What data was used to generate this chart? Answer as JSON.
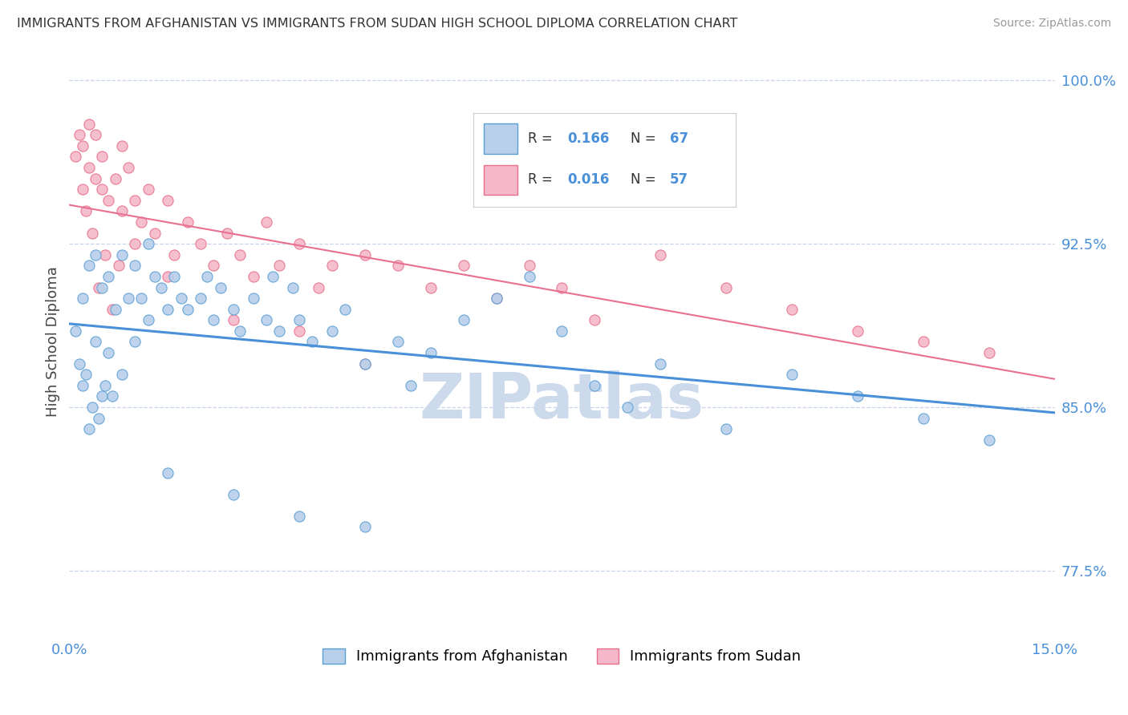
{
  "title": "IMMIGRANTS FROM AFGHANISTAN VS IMMIGRANTS FROM SUDAN HIGH SCHOOL DIPLOMA CORRELATION CHART",
  "source": "Source: ZipAtlas.com",
  "ylabel": "High School Diploma",
  "xlim": [
    0.0,
    15.0
  ],
  "ylim": [
    74.5,
    101.5
  ],
  "yticks": [
    77.5,
    85.0,
    92.5,
    100.0
  ],
  "xticks": [
    0.0,
    15.0
  ],
  "xtick_labels": [
    "0.0%",
    "15.0%"
  ],
  "ytick_labels": [
    "77.5%",
    "85.0%",
    "92.5%",
    "100.0%"
  ],
  "afghanistan_color": "#b8d0ea",
  "sudan_color": "#f5b8cb",
  "afghanistan_edge_color": "#5a9fd4",
  "sudan_edge_color": "#e8708a",
  "afghanistan_line_color": "#4a90d9",
  "sudan_line_color": "#e87090",
  "R_afghanistan": 0.166,
  "N_afghanistan": 67,
  "R_sudan": 0.016,
  "N_sudan": 57,
  "watermark": "ZIPatlas",
  "watermark_color": "#ccdaec",
  "legend_label_afghanistan": "Immigrants from Afghanistan",
  "legend_label_sudan": "Immigrants from Sudan",
  "background_color": "#ffffff",
  "grid_color": "#c8d4e8",
  "afg_x": [
    0.1,
    0.2,
    0.2,
    0.3,
    0.3,
    0.4,
    0.4,
    0.5,
    0.5,
    0.6,
    0.6,
    0.7,
    0.8,
    0.8,
    0.9,
    1.0,
    1.0,
    1.1,
    1.2,
    1.2,
    1.3,
    1.4,
    1.5,
    1.6,
    1.7,
    1.8,
    2.0,
    2.1,
    2.2,
    2.3,
    2.5,
    2.6,
    2.8,
    3.0,
    3.1,
    3.2,
    3.4,
    3.5,
    3.7,
    4.0,
    4.2,
    4.5,
    5.0,
    5.2,
    5.5,
    6.0,
    6.5,
    7.0,
    7.5,
    8.0,
    8.5,
    9.0,
    10.0,
    11.0,
    12.0,
    13.0,
    14.0,
    0.15,
    0.25,
    0.35,
    0.45,
    0.55,
    0.65,
    1.5,
    2.5,
    3.5,
    4.5
  ],
  "afg_y": [
    88.5,
    90.0,
    86.0,
    91.5,
    84.0,
    92.0,
    88.0,
    90.5,
    85.5,
    91.0,
    87.5,
    89.5,
    92.0,
    86.5,
    90.0,
    91.5,
    88.0,
    90.0,
    92.5,
    89.0,
    91.0,
    90.5,
    89.5,
    91.0,
    90.0,
    89.5,
    90.0,
    91.0,
    89.0,
    90.5,
    89.5,
    88.5,
    90.0,
    89.0,
    91.0,
    88.5,
    90.5,
    89.0,
    88.0,
    88.5,
    89.5,
    87.0,
    88.0,
    86.0,
    87.5,
    89.0,
    90.0,
    91.0,
    88.5,
    86.0,
    85.0,
    87.0,
    84.0,
    86.5,
    85.5,
    84.5,
    83.5,
    87.0,
    86.5,
    85.0,
    84.5,
    86.0,
    85.5,
    82.0,
    81.0,
    80.0,
    79.5
  ],
  "sud_x": [
    0.1,
    0.15,
    0.2,
    0.2,
    0.3,
    0.3,
    0.4,
    0.4,
    0.5,
    0.5,
    0.6,
    0.7,
    0.8,
    0.8,
    0.9,
    1.0,
    1.0,
    1.1,
    1.2,
    1.3,
    1.5,
    1.6,
    1.8,
    2.0,
    2.2,
    2.4,
    2.6,
    2.8,
    3.0,
    3.2,
    3.5,
    3.8,
    4.0,
    4.5,
    5.0,
    5.5,
    6.0,
    6.5,
    7.0,
    7.5,
    8.0,
    9.0,
    10.0,
    11.0,
    12.0,
    13.0,
    14.0,
    0.25,
    0.35,
    0.55,
    0.75,
    1.5,
    2.5,
    3.5,
    4.5,
    0.45,
    0.65
  ],
  "sud_y": [
    96.5,
    97.5,
    97.0,
    95.0,
    98.0,
    96.0,
    95.5,
    97.5,
    95.0,
    96.5,
    94.5,
    95.5,
    97.0,
    94.0,
    96.0,
    94.5,
    92.5,
    93.5,
    95.0,
    93.0,
    94.5,
    92.0,
    93.5,
    92.5,
    91.5,
    93.0,
    92.0,
    91.0,
    93.5,
    91.5,
    92.5,
    90.5,
    91.5,
    92.0,
    91.5,
    90.5,
    91.5,
    90.0,
    91.5,
    90.5,
    89.0,
    92.0,
    90.5,
    89.5,
    88.5,
    88.0,
    87.5,
    94.0,
    93.0,
    92.0,
    91.5,
    91.0,
    89.0,
    88.5,
    87.0,
    90.5,
    89.5
  ]
}
